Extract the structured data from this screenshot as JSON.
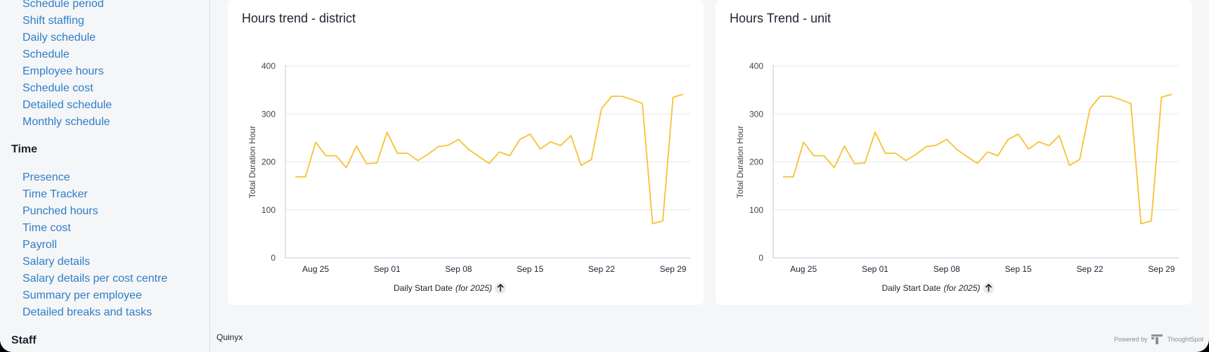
{
  "sidebar": {
    "schedule_links": [
      "Schedule period",
      "Shift staffing",
      "Daily schedule",
      "Schedule",
      "Employee hours",
      "Schedule cost",
      "Detailed schedule",
      "Monthly schedule"
    ],
    "time_heading": "Time",
    "time_links": [
      "Presence",
      "Time Tracker",
      "Punched hours",
      "Time cost",
      "Payroll",
      "Salary details",
      "Salary details per cost centre",
      "Summary per employee",
      "Detailed breaks and tasks"
    ],
    "staff_heading": "Staff"
  },
  "cards": [
    {
      "title": "Hours trend - district"
    },
    {
      "title": "Hours Trend - unit"
    }
  ],
  "chart_data": [
    {
      "type": "line",
      "title": "Hours trend - district",
      "ylabel": "Total Duration Hour",
      "xlabel": "Daily Start Date",
      "xlabel_suffix": "(for 2025)",
      "ylim": [
        0,
        400
      ],
      "yticks": [
        0,
        100,
        200,
        300,
        400
      ],
      "xticks": [
        "Aug 25",
        "Sep 01",
        "Sep 08",
        "Sep 15",
        "Sep 22",
        "Sep 29"
      ],
      "x": [
        "Aug 23",
        "Aug 24",
        "Aug 25",
        "Aug 26",
        "Aug 27",
        "Aug 28",
        "Aug 29",
        "Aug 30",
        "Aug 31",
        "Sep 01",
        "Sep 02",
        "Sep 03",
        "Sep 04",
        "Sep 05",
        "Sep 06",
        "Sep 07",
        "Sep 08",
        "Sep 09",
        "Sep 10",
        "Sep 11",
        "Sep 12",
        "Sep 13",
        "Sep 14",
        "Sep 15",
        "Sep 16",
        "Sep 17",
        "Sep 18",
        "Sep 19",
        "Sep 20",
        "Sep 21",
        "Sep 22",
        "Sep 23",
        "Sep 24",
        "Sep 25",
        "Sep 26",
        "Sep 27",
        "Sep 28",
        "Sep 29",
        "Sep 30"
      ],
      "values": [
        169,
        169,
        241,
        213,
        213,
        188,
        233,
        196,
        198,
        262,
        218,
        218,
        203,
        216,
        232,
        235,
        247,
        226,
        211,
        197,
        221,
        213,
        247,
        258,
        227,
        242,
        234,
        255,
        193,
        205,
        311,
        337,
        337,
        330,
        322,
        71,
        77,
        335,
        341
      ],
      "color": "#f7c233",
      "grid": true
    },
    {
      "type": "line",
      "title": "Hours Trend - unit",
      "ylabel": "Total Duration Hour",
      "xlabel": "Daily Start Date",
      "xlabel_suffix": "(for 2025)",
      "ylim": [
        0,
        400
      ],
      "yticks": [
        0,
        100,
        200,
        300,
        400
      ],
      "xticks": [
        "Aug 25",
        "Sep 01",
        "Sep 08",
        "Sep 15",
        "Sep 22",
        "Sep 29"
      ],
      "x": [
        "Aug 23",
        "Aug 24",
        "Aug 25",
        "Aug 26",
        "Aug 27",
        "Aug 28",
        "Aug 29",
        "Aug 30",
        "Aug 31",
        "Sep 01",
        "Sep 02",
        "Sep 03",
        "Sep 04",
        "Sep 05",
        "Sep 06",
        "Sep 07",
        "Sep 08",
        "Sep 09",
        "Sep 10",
        "Sep 11",
        "Sep 12",
        "Sep 13",
        "Sep 14",
        "Sep 15",
        "Sep 16",
        "Sep 17",
        "Sep 18",
        "Sep 19",
        "Sep 20",
        "Sep 21",
        "Sep 22",
        "Sep 23",
        "Sep 24",
        "Sep 25",
        "Sep 26",
        "Sep 27",
        "Sep 28",
        "Sep 29",
        "Sep 30"
      ],
      "values": [
        169,
        169,
        241,
        213,
        213,
        188,
        233,
        196,
        198,
        262,
        218,
        218,
        203,
        216,
        232,
        235,
        247,
        226,
        211,
        197,
        221,
        213,
        247,
        258,
        227,
        242,
        234,
        255,
        193,
        205,
        311,
        337,
        337,
        330,
        322,
        71,
        77,
        335,
        341
      ],
      "color": "#f7c233",
      "grid": true
    }
  ],
  "footer": {
    "left_text": "Quinyx",
    "powered_by": "Powered by",
    "brand": "ThoughtSpot"
  },
  "icons": {
    "sort_icon": "arrow-up-icon",
    "brand_icon": "thoughtspot-logo-icon"
  }
}
